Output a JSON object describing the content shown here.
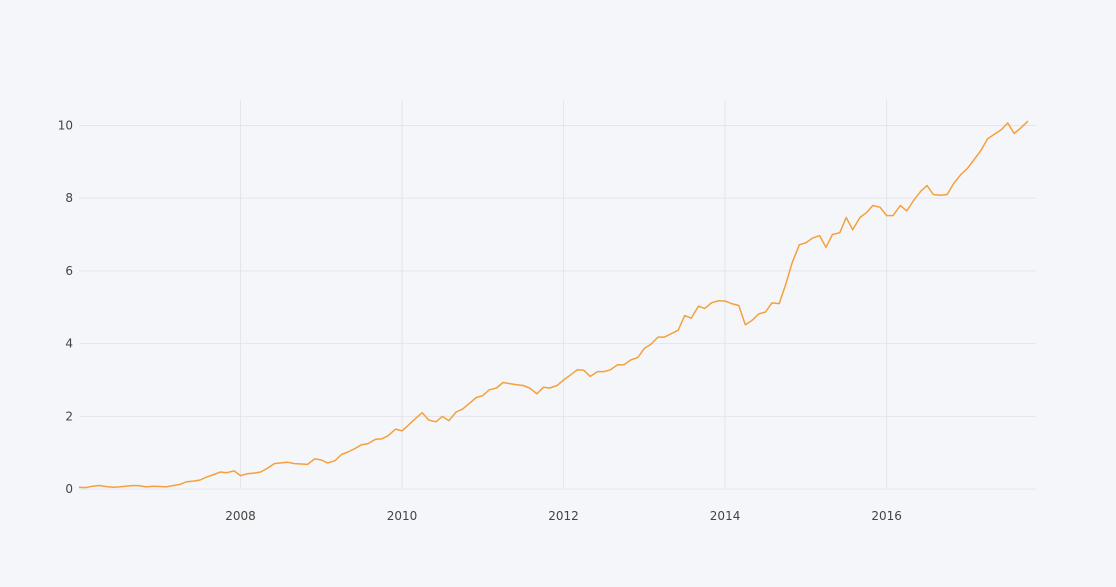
{
  "chart_data": {
    "type": "line",
    "title": "",
    "xlabel": "",
    "ylabel": "",
    "xlim": [
      2006.0,
      2017.85
    ],
    "ylim": [
      -0.3,
      10.7
    ],
    "x_ticks": [
      2008,
      2010,
      2012,
      2014,
      2016
    ],
    "x_tick_labels": [
      "2008",
      "2010",
      "2012",
      "2014",
      "2016"
    ],
    "y_ticks": [
      0,
      2,
      4,
      6,
      8,
      10
    ],
    "y_tick_labels": [
      "0",
      "2",
      "4",
      "6",
      "8",
      "10"
    ],
    "grid": true,
    "legend": "none",
    "colors": {
      "background": "#f5f6fa",
      "grid": "#e3e5ec",
      "line": "#f5a03c",
      "tick_text": "#444444"
    },
    "series": [
      {
        "x": [
          2006.0,
          2006.08,
          2006.17,
          2006.25,
          2006.33,
          2006.42,
          2006.5,
          2006.58,
          2006.67,
          2006.75,
          2006.83,
          2006.92,
          2007.0,
          2007.08,
          2007.17,
          2007.25,
          2007.33,
          2007.42,
          2007.5,
          2007.58,
          2007.67,
          2007.75,
          2007.83,
          2007.92,
          2008.0,
          2008.08,
          2008.17,
          2008.25,
          2008.33,
          2008.42,
          2008.5,
          2008.58,
          2008.67,
          2008.75,
          2008.83,
          2008.92,
          2009.0,
          2009.08,
          2009.17,
          2009.25,
          2009.33,
          2009.42,
          2009.5,
          2009.58,
          2009.67,
          2009.75,
          2009.83,
          2009.92,
          2010.0,
          2010.08,
          2010.17,
          2010.25,
          2010.33,
          2010.42,
          2010.5,
          2010.58,
          2010.67,
          2010.75,
          2010.83,
          2010.92,
          2011.0,
          2011.08,
          2011.17,
          2011.25,
          2011.33,
          2011.42,
          2011.5,
          2011.58,
          2011.67,
          2011.75,
          2011.83,
          2011.92,
          2012.0,
          2012.08,
          2012.17,
          2012.25,
          2012.33,
          2012.42,
          2012.5,
          2012.58,
          2012.67,
          2012.75,
          2012.83,
          2012.92,
          2013.0,
          2013.08,
          2013.17,
          2013.25,
          2013.33,
          2013.42,
          2013.5,
          2013.58,
          2013.67,
          2013.75,
          2013.83,
          2013.92,
          2014.0,
          2014.08,
          2014.17,
          2014.25,
          2014.33,
          2014.42,
          2014.5,
          2014.58,
          2014.67,
          2014.75,
          2014.83,
          2014.92,
          2015.0,
          2015.08,
          2015.17,
          2015.25,
          2015.33,
          2015.42,
          2015.5,
          2015.58,
          2015.67,
          2015.75,
          2015.83,
          2015.92,
          2016.0,
          2016.08,
          2016.17,
          2016.25,
          2016.33,
          2016.42,
          2016.5,
          2016.58,
          2016.67,
          2016.75,
          2016.83,
          2016.92,
          2017.0,
          2017.08,
          2017.17,
          2017.25,
          2017.33,
          2017.42,
          2017.5,
          2017.58,
          2017.67,
          2017.75
        ],
        "y": [
          0.05,
          0.04,
          0.08,
          0.1,
          0.07,
          0.05,
          0.06,
          0.08,
          0.1,
          0.09,
          0.06,
          0.08,
          0.07,
          0.06,
          0.1,
          0.13,
          0.2,
          0.22,
          0.25,
          0.33,
          0.4,
          0.47,
          0.45,
          0.5,
          0.37,
          0.42,
          0.44,
          0.47,
          0.57,
          0.7,
          0.72,
          0.74,
          0.7,
          0.69,
          0.68,
          0.83,
          0.8,
          0.72,
          0.78,
          0.95,
          1.02,
          1.12,
          1.22,
          1.25,
          1.37,
          1.38,
          1.47,
          1.65,
          1.6,
          1.76,
          1.95,
          2.1,
          1.9,
          1.85,
          2.0,
          1.88,
          2.12,
          2.2,
          2.35,
          2.52,
          2.57,
          2.73,
          2.78,
          2.93,
          2.9,
          2.87,
          2.85,
          2.78,
          2.62,
          2.8,
          2.78,
          2.85,
          3.0,
          3.13,
          3.28,
          3.27,
          3.1,
          3.23,
          3.23,
          3.28,
          3.42,
          3.42,
          3.55,
          3.62,
          3.87,
          3.98,
          4.18,
          4.18,
          4.27,
          4.37,
          4.77,
          4.7,
          5.03,
          4.97,
          5.12,
          5.18,
          5.17,
          5.1,
          5.05,
          4.52,
          4.63,
          4.82,
          4.87,
          5.12,
          5.1,
          5.62,
          6.22,
          6.72,
          6.77,
          6.9,
          6.97,
          6.65,
          7.0,
          7.05,
          7.47,
          7.13,
          7.47,
          7.6,
          7.8,
          7.75,
          7.52,
          7.52,
          7.8,
          7.65,
          7.92,
          8.18,
          8.35,
          8.1,
          8.08,
          8.1,
          8.4,
          8.65,
          8.82,
          9.05,
          9.32,
          9.63,
          9.75,
          9.88,
          10.07,
          9.78,
          9.95,
          10.12
        ]
      }
    ]
  }
}
